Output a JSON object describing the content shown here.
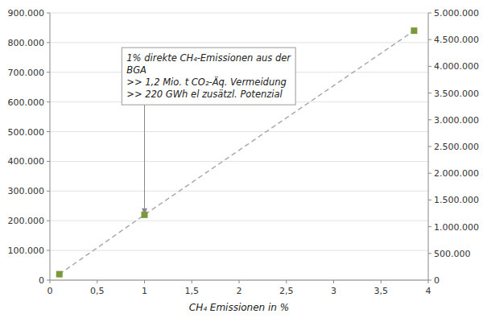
{
  "chart_data": {
    "type": "line",
    "xlabel": "CH₄ Emissionen in %",
    "x": [
      0.1,
      1.0,
      3.85
    ],
    "series": [
      {
        "values": [
          20000,
          220000,
          840000
        ],
        "color": "#7a9a3a",
        "marker": "square",
        "line_style": "dashed"
      }
    ],
    "xlim": [
      0,
      4
    ],
    "xticks": [
      0,
      {
        "value": 0.5,
        "label": "0,5"
      },
      1,
      {
        "value": 1.5,
        "label": "1,5"
      },
      2,
      {
        "value": 2.5,
        "label": "2,5"
      },
      3,
      {
        "value": 3.5,
        "label": "3,5"
      },
      4
    ],
    "ylim": [
      0,
      900000
    ],
    "yticks": [
      0,
      {
        "value": 100000,
        "label": "100.000"
      },
      {
        "value": 200000,
        "label": "200.000"
      },
      {
        "value": 300000,
        "label": "300.000"
      },
      {
        "value": 400000,
        "label": "400.000"
      },
      {
        "value": 500000,
        "label": "500.000"
      },
      {
        "value": 600000,
        "label": "600.000"
      },
      {
        "value": 700000,
        "label": "700.000"
      },
      {
        "value": 800000,
        "label": "800.000"
      },
      {
        "value": 900000,
        "label": "900.000"
      }
    ],
    "y2lim": [
      0,
      5000000
    ],
    "y2ticks": [
      0,
      {
        "value": 500000,
        "label": "500.000"
      },
      {
        "value": 1000000,
        "label": "1.000.000"
      },
      {
        "value": 1500000,
        "label": "1.500.000"
      },
      {
        "value": 2000000,
        "label": "2.000.000"
      },
      {
        "value": 2500000,
        "label": "2.500.000"
      },
      {
        "value": 3000000,
        "label": "3.000.000"
      },
      {
        "value": 3500000,
        "label": "3.500.000"
      },
      {
        "value": 4000000,
        "label": "4.000.000"
      },
      {
        "value": 4500000,
        "label": "4.500.000"
      },
      {
        "value": 5000000,
        "label": "5.000.000"
      }
    ],
    "grid": true,
    "annotations": [
      {
        "text": [
          "1% direkte CH₄-Emissionen aus der",
          "BGA",
          ">> 1,2 Mio. t CO₂-Äq. Vermeidung",
          ">> 220 GWh el zusätzl. Potenzial"
        ],
        "x": 1.0,
        "y": 220000
      }
    ]
  }
}
